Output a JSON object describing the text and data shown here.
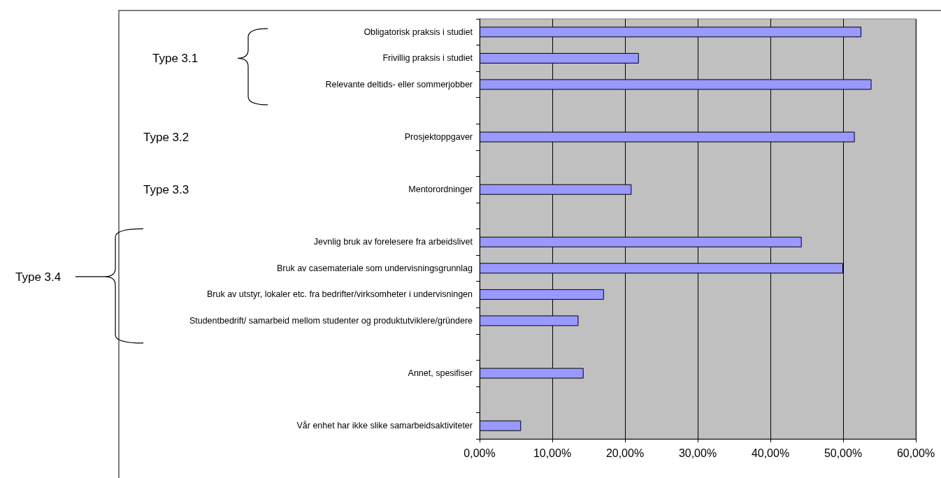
{
  "chart_data": {
    "type": "bar",
    "orientation": "horizontal",
    "color": "#9999ff",
    "grid": "x",
    "categories": [
      "Obligatorisk praksis i studiet",
      "Frivillig praksis i studiet",
      "Relevante deltids- eller sommerjobber",
      null,
      "Prosjektoppgaver",
      null,
      "Mentorordninger",
      null,
      "Jevnlig bruk av forelesere fra arbeidslivet",
      "Bruk av casemateriale som undervisningsgrunnlag",
      "Bruk av utstyr, lokaler etc. fra bedrifter/virksomheter i undervisningen",
      "Studentbedrift/ samarbeid mellom studenter og produktutviklere/gründere",
      null,
      "Annet, spesifiser",
      null,
      "Vår enhet har ikke slike samarbeidsaktiviteter"
    ],
    "values": [
      52.5,
      21.9,
      53.9,
      null,
      51.6,
      null,
      20.9,
      null,
      44.3,
      50.0,
      17.1,
      13.6,
      null,
      14.3,
      null,
      5.7
    ],
    "xlim": [
      0,
      60
    ],
    "xticks": [
      {
        "value": 0,
        "label": "0,00%"
      },
      {
        "value": 10,
        "label": "10,00%"
      },
      {
        "value": 20,
        "label": "20,00%"
      },
      {
        "value": 30,
        "label": "30,00%"
      },
      {
        "value": 40,
        "label": "40,00%"
      },
      {
        "value": 50,
        "label": "50,00%"
      },
      {
        "value": 60,
        "label": "60,00%"
      }
    ],
    "annotations": [
      "Type 3.1",
      "Type 3.2",
      "Type 3.3",
      "Type 3.4"
    ]
  }
}
